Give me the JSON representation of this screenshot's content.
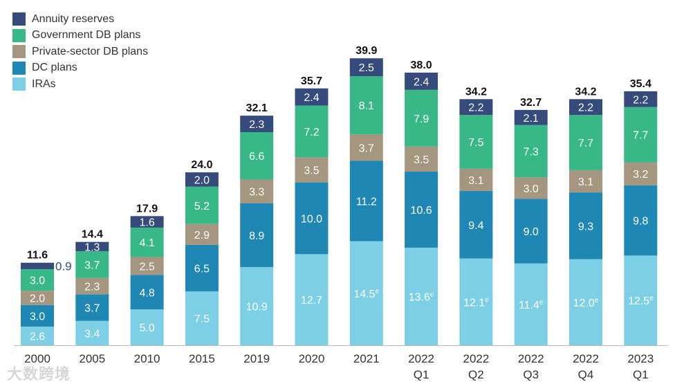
{
  "chart_data": {
    "type": "bar",
    "stacked": true,
    "title": "",
    "xlabel": "",
    "ylabel": "",
    "ylim": [
      0,
      42
    ],
    "grid": false,
    "legend_position": "top-left",
    "categories": [
      {
        "year": "2000",
        "quarter": ""
      },
      {
        "year": "2005",
        "quarter": ""
      },
      {
        "year": "2010",
        "quarter": ""
      },
      {
        "year": "2015",
        "quarter": ""
      },
      {
        "year": "2019",
        "quarter": ""
      },
      {
        "year": "2020",
        "quarter": ""
      },
      {
        "year": "2021",
        "quarter": ""
      },
      {
        "year": "2022",
        "quarter": "Q1"
      },
      {
        "year": "2022",
        "quarter": "Q2"
      },
      {
        "year": "2022",
        "quarter": "Q3"
      },
      {
        "year": "2022",
        "quarter": "Q4"
      },
      {
        "year": "2023",
        "quarter": "Q1"
      }
    ],
    "series": [
      {
        "name": "IRAs",
        "color": "#7ccfe4",
        "values": [
          2.6,
          3.4,
          5.0,
          7.5,
          10.9,
          12.7,
          14.5,
          13.6,
          12.1,
          11.4,
          12.0,
          12.5
        ],
        "estimated": [
          false,
          false,
          false,
          false,
          false,
          false,
          true,
          true,
          true,
          true,
          true,
          true
        ]
      },
      {
        "name": "DC plans",
        "color": "#1f87b3",
        "values": [
          3.0,
          3.7,
          4.8,
          6.5,
          8.9,
          10.0,
          11.2,
          10.6,
          9.4,
          9.0,
          9.3,
          9.8
        ]
      },
      {
        "name": "Private-sector DB plans",
        "color": "#a5967f",
        "values": [
          2.0,
          2.3,
          2.5,
          2.9,
          3.3,
          3.5,
          3.7,
          3.5,
          3.1,
          3.0,
          3.1,
          3.2
        ]
      },
      {
        "name": "Government DB plans",
        "color": "#39b887",
        "values": [
          3.0,
          3.7,
          4.1,
          5.2,
          6.6,
          7.2,
          8.1,
          7.9,
          7.5,
          7.3,
          7.7,
          7.7
        ]
      },
      {
        "name": "Annuity reserves",
        "color": "#354b7c",
        "values": [
          0.9,
          1.3,
          1.6,
          2.0,
          2.3,
          2.4,
          2.5,
          2.4,
          2.2,
          2.1,
          2.2,
          2.2
        ]
      }
    ],
    "totals": [
      "11.6",
      "14.4",
      "17.9",
      "24.0",
      "32.1",
      "35.7",
      "39.9",
      "38.0",
      "34.2",
      "32.7",
      "34.2",
      "35.4"
    ],
    "estimate_marker": "e"
  },
  "legend_order": [
    "Annuity reserves",
    "Government DB plans",
    "Private-sector DB plans",
    "DC plans",
    "IRAs"
  ],
  "watermark": "大数跨境"
}
